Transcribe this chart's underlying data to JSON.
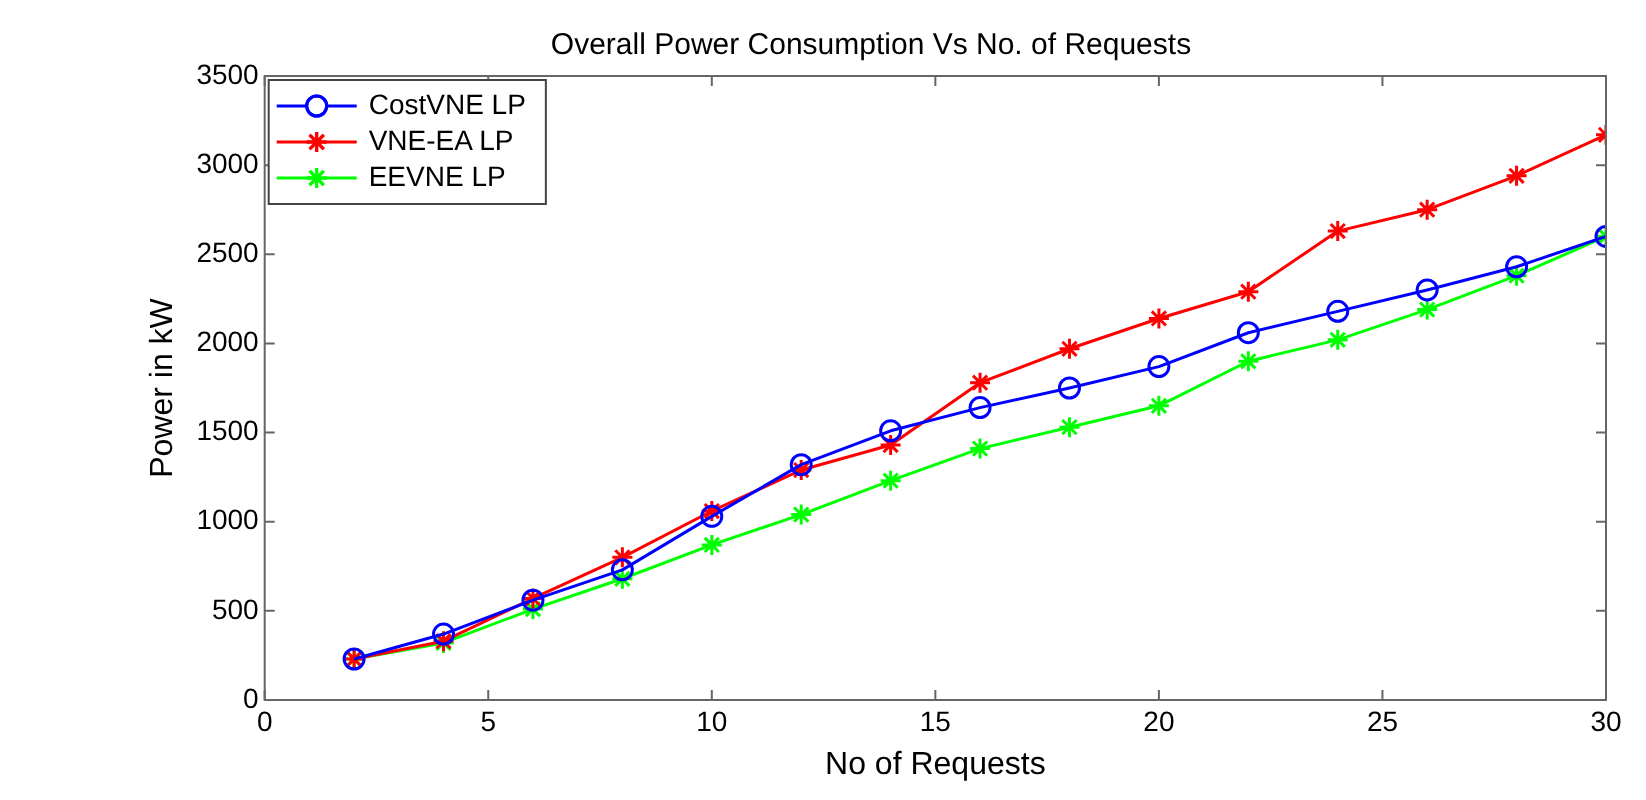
{
  "chart_data": {
    "type": "line",
    "title": "Overall Power Consumption Vs No. of Requests",
    "xlabel": "No of Requests",
    "ylabel": "Power in kW",
    "x": [
      2,
      4,
      6,
      8,
      10,
      12,
      14,
      16,
      18,
      20,
      22,
      24,
      26,
      28,
      30
    ],
    "series": [
      {
        "name": "CostVNE LP",
        "color": "#0000ff",
        "marker": "circle",
        "values": [
          230,
          370,
          560,
          730,
          1030,
          1320,
          1510,
          1640,
          1750,
          1870,
          2060,
          2180,
          2300,
          2430,
          2600
        ]
      },
      {
        "name": "VNE-EA LP",
        "color": "#ff0000",
        "marker": "cross",
        "values": [
          230,
          330,
          570,
          800,
          1060,
          1290,
          1430,
          1780,
          1970,
          2140,
          2290,
          2630,
          2750,
          2940,
          3170
        ]
      },
      {
        "name": "EEVNE LP",
        "color": "#00ff00",
        "marker": "cross",
        "values": [
          230,
          320,
          510,
          680,
          870,
          1040,
          1230,
          1410,
          1530,
          1650,
          1900,
          2020,
          2190,
          2380,
          2600
        ]
      }
    ],
    "xlim": [
      0,
      30
    ],
    "xticks": [
      0,
      5,
      10,
      15,
      20,
      25,
      30
    ],
    "ylim": [
      0,
      3500
    ],
    "yticks": [
      0,
      500,
      1000,
      1500,
      2000,
      2500,
      3000,
      3500
    ],
    "grid": false,
    "legend": "top left",
    "line_style": "solid"
  }
}
